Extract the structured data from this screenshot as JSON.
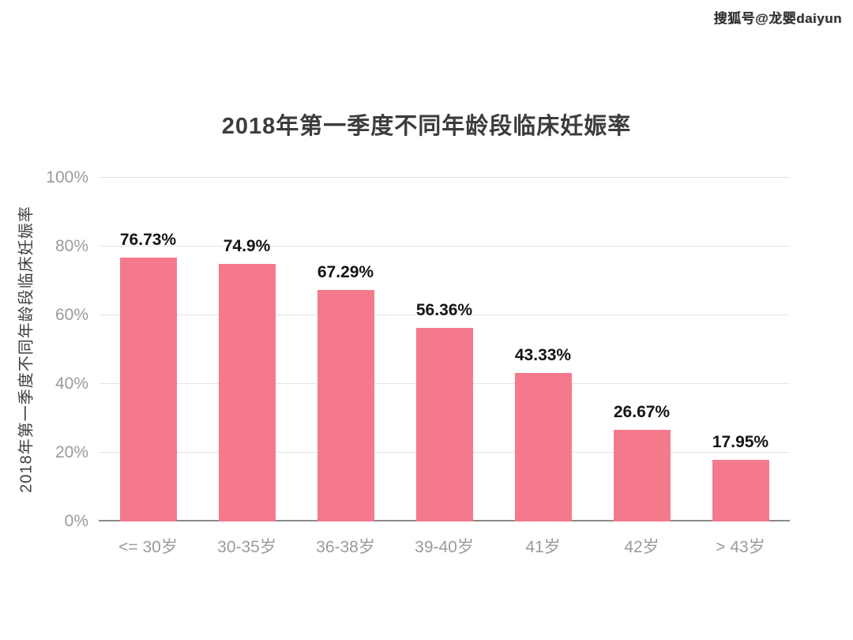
{
  "watermark": {
    "text": "搜狐号@龙婴daiyun"
  },
  "chart_data": {
    "type": "bar",
    "title": "2018年第一季度不同年龄段临床妊娠率",
    "xlabel": "",
    "ylabel": "2018年第一季度不同年龄段临床妊娠率",
    "categories": [
      "<= 30岁",
      "30-35岁",
      "36-38岁",
      "39-40岁",
      "41岁",
      "42岁",
      "> 43岁"
    ],
    "values": [
      76.73,
      74.9,
      67.29,
      56.36,
      43.33,
      26.67,
      17.95
    ],
    "value_labels": [
      "76.73%",
      "74.9%",
      "67.29%",
      "56.36%",
      "43.33%",
      "26.67%",
      "17.95%"
    ],
    "yticks": [
      0,
      20,
      40,
      60,
      80,
      100
    ],
    "ytick_labels": [
      "0%",
      "20%",
      "40%",
      "60%",
      "80%",
      "100%"
    ],
    "ylim": [
      0,
      100
    ],
    "grid": true,
    "legend": false,
    "bar_color": "#F5798C",
    "gridline_color": "#e4e4e4",
    "axis_line_color": "#8a8a8a",
    "tick_text_color": "#9b9b9b",
    "value_text_color": "#141414"
  }
}
